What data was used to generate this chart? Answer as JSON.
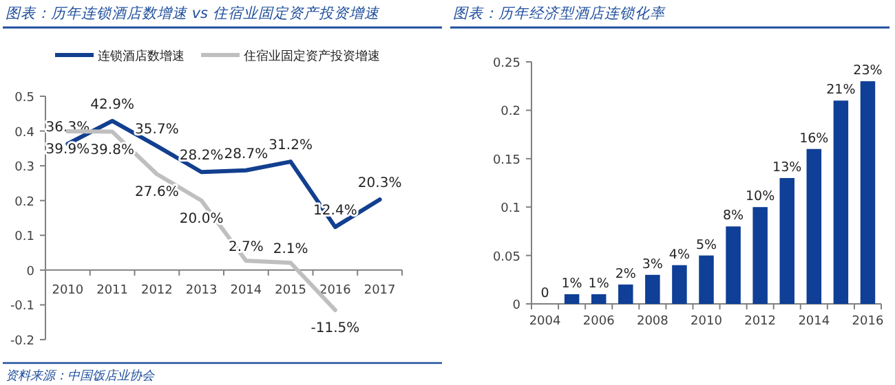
{
  "chart_data": [
    {
      "type": "line",
      "title": "图表：历年连锁酒店数增速 vs 住宿业固定资产投资增速",
      "categories": [
        "2010",
        "2011",
        "2012",
        "2013",
        "2014",
        "2015",
        "2016",
        "2017"
      ],
      "series": [
        {
          "name": "连锁酒店数增速",
          "color": "#123f8f",
          "values": [
            0.363,
            0.429,
            0.357,
            0.282,
            0.287,
            0.312,
            0.124,
            0.203
          ],
          "value_labels": [
            "36.3%",
            "42.9%",
            "35.7%",
            "28.2%",
            "28.7%",
            "31.2%",
            "12.4%",
            "20.3%"
          ]
        },
        {
          "name": "住宿业固定资产投资增速",
          "color": "#bfbfbf",
          "values": [
            0.399,
            0.398,
            0.276,
            0.2,
            0.027,
            0.021,
            -0.115,
            null
          ],
          "value_labels": [
            "39.9%",
            "39.8%",
            "27.6%",
            "20.0%",
            "2.7%",
            "2.1%",
            "-11.5%",
            null
          ]
        }
      ],
      "ylim": [
        -0.2,
        0.5
      ],
      "yticks": [
        -0.2,
        -0.1,
        0,
        0.1,
        0.2,
        0.3,
        0.4,
        0.5
      ],
      "legend": "top",
      "marker": "none",
      "line_style": "solid",
      "annotations": [
        "资料来源：中国饭店业协会"
      ]
    },
    {
      "type": "bar",
      "title": "图表：历年经济型酒店连锁化率",
      "categories": [
        "2004",
        null,
        "2006",
        null,
        "2008",
        null,
        "2010",
        null,
        "2012",
        null,
        "2014",
        null,
        "2016"
      ],
      "values": [
        0,
        0.01,
        0.01,
        0.02,
        0.03,
        0.04,
        0.05,
        0.08,
        0.1,
        0.13,
        0.16,
        0.21,
        0.23
      ],
      "color": "#0f3f96",
      "value_labels": [
        "0",
        "1%",
        "1%",
        "2%",
        "3%",
        "4%",
        "5%",
        "8%",
        "10%",
        "13%",
        "16%",
        "21%",
        "23%"
      ],
      "ylim": [
        0,
        0.25
      ],
      "yticks": [
        0,
        0.05,
        0.1,
        0.15,
        0.2,
        0.25
      ]
    }
  ]
}
